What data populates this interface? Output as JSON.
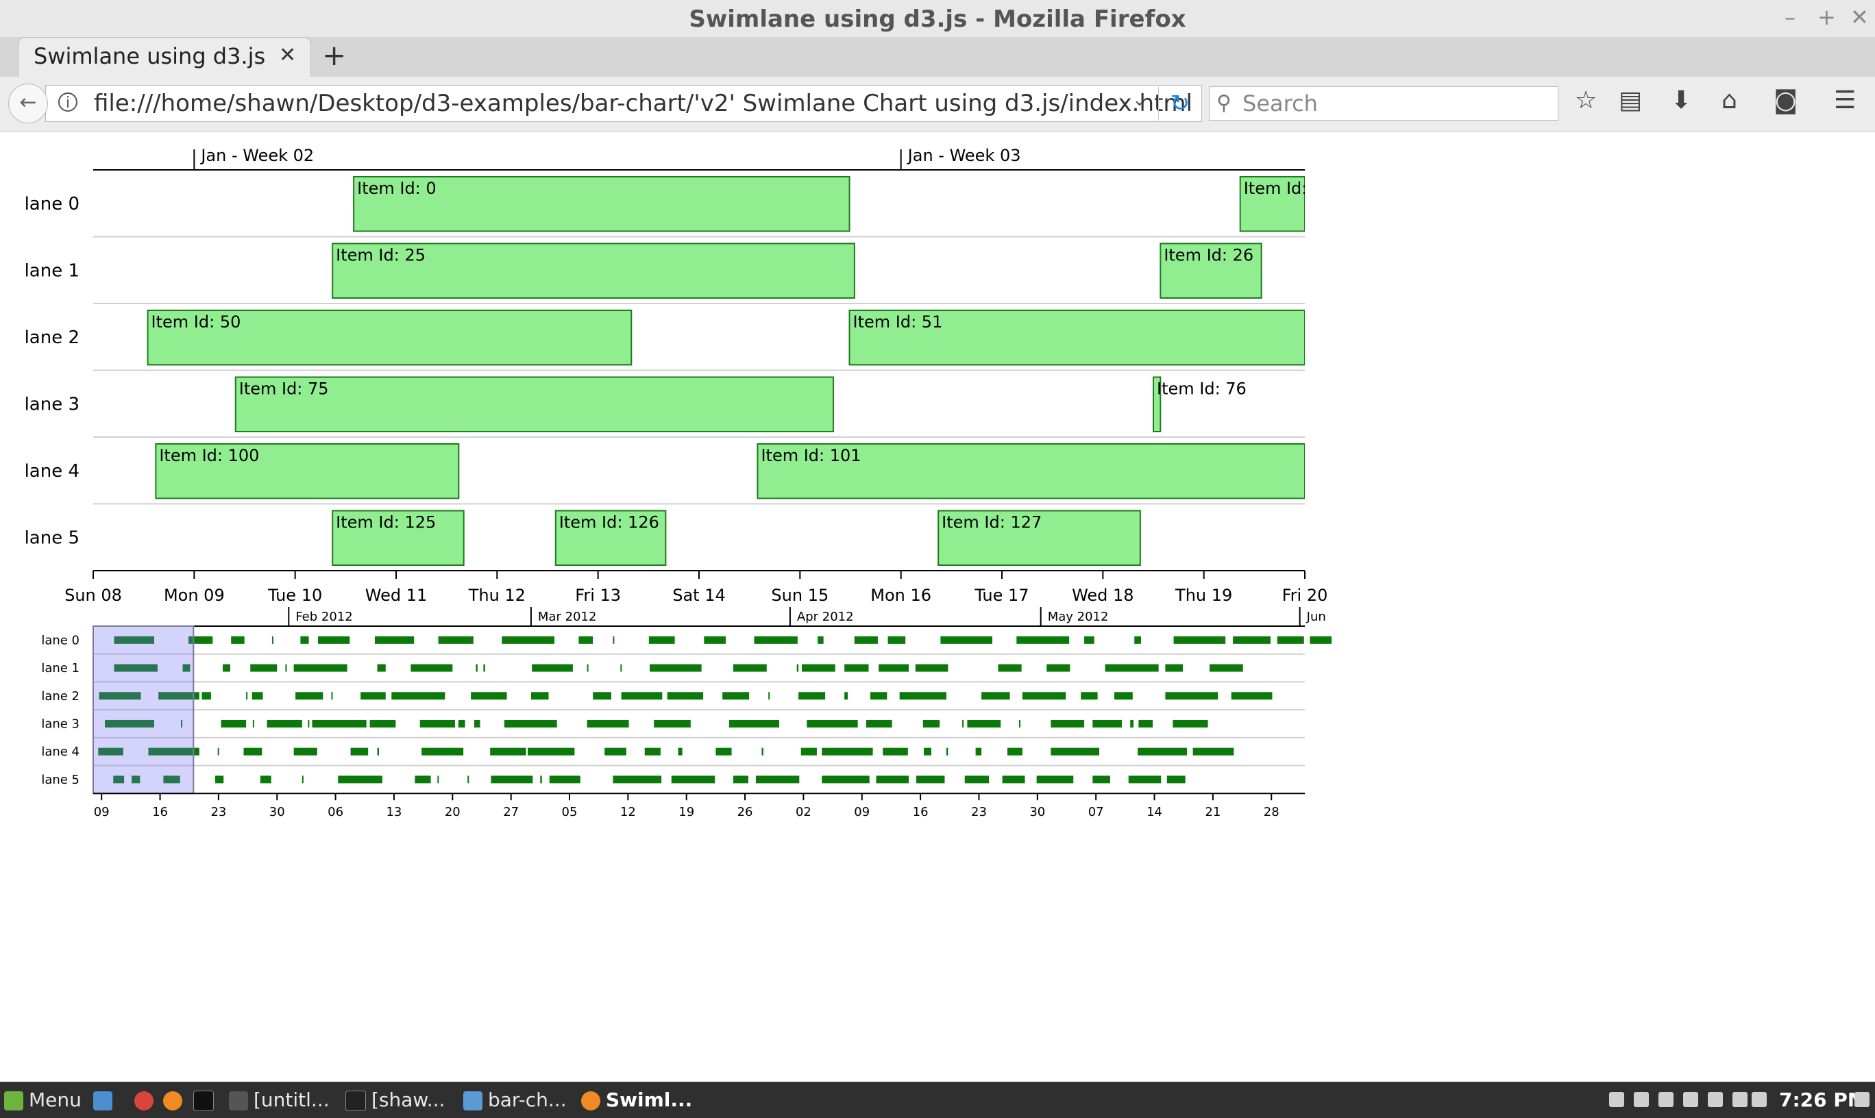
{
  "window": {
    "title": "Swimlane using d3.js - Mozilla Firefox",
    "controls": {
      "minimize": "–",
      "maximize": "+",
      "close": "✕"
    }
  },
  "tab": {
    "title": "Swimlane using d3.js",
    "close_glyph": "✕",
    "new_tab_glyph": "+"
  },
  "navbar": {
    "back_glyph": "←",
    "url": "file:///home/shawn/Desktop/d3-examples/bar-chart/'v2' Swimlane Chart using d3.js/index.html",
    "search_placeholder": "Search",
    "icons": [
      "star-icon",
      "reading-list-icon",
      "download-icon",
      "home-icon",
      "pocket-icon",
      "menu-icon"
    ]
  },
  "chart_data": {
    "type": "swimlane",
    "lanes": [
      "lane 0",
      "lane 1",
      "lane 2",
      "lane 3",
      "lane 4",
      "lane 5"
    ],
    "main": {
      "week_labels": [
        "Jan - Week 02",
        "Jan - Week 03"
      ],
      "day_ticks": [
        "Sun 08",
        "Mon 09",
        "Tue 10",
        "Wed 11",
        "Thu 12",
        "Fri 13",
        "Sat 14",
        "Sun 15",
        "Mon 16",
        "Tue 17",
        "Wed 18",
        "Thu 19",
        "Fri 20"
      ],
      "items": [
        {
          "lane": 0,
          "label": "Item Id: 0",
          "start": 2.58,
          "end": 7.49
        },
        {
          "lane": 0,
          "label": "Item Id:",
          "start": 11.36,
          "end": 12.0
        },
        {
          "lane": 1,
          "label": "Item Id: 25",
          "start": 2.37,
          "end": 7.54
        },
        {
          "lane": 1,
          "label": "Item Id: 26",
          "start": 10.57,
          "end": 11.57
        },
        {
          "lane": 2,
          "label": "Item Id: 50",
          "start": 0.54,
          "end": 5.33
        },
        {
          "lane": 2,
          "label": "Item Id: 51",
          "start": 7.49,
          "end": 12.0
        },
        {
          "lane": 3,
          "label": "Item Id: 75",
          "start": 1.41,
          "end": 7.33
        },
        {
          "lane": 3,
          "label": "Item Id: 76",
          "start": 10.5,
          "end": 10.57
        },
        {
          "lane": 4,
          "label": "Item Id: 100",
          "start": 0.62,
          "end": 3.62
        },
        {
          "lane": 4,
          "label": "Item Id: 101",
          "start": 6.58,
          "end": 12.0
        },
        {
          "lane": 5,
          "label": "Item Id: 125",
          "start": 2.37,
          "end": 3.67
        },
        {
          "lane": 5,
          "label": "Item Id: 126",
          "start": 4.58,
          "end": 5.67
        },
        {
          "lane": 5,
          "label": "Item Id: 127",
          "start": 8.37,
          "end": 10.37
        }
      ]
    },
    "mini": {
      "month_labels": [
        {
          "label": "Feb 2012",
          "day": 23.4
        },
        {
          "label": "Mar 2012",
          "day": 52.4
        },
        {
          "label": "Apr 2012",
          "day": 83.4
        },
        {
          "label": "May 2012",
          "day": 113.4
        },
        {
          "label": "Jun",
          "day": 144.4
        }
      ],
      "day_ticks": [
        {
          "label": "09",
          "day": 1
        },
        {
          "label": "16",
          "day": 8
        },
        {
          "label": "23",
          "day": 15
        },
        {
          "label": "30",
          "day": 22
        },
        {
          "label": "06",
          "day": 29
        },
        {
          "label": "13",
          "day": 36
        },
        {
          "label": "20",
          "day": 43
        },
        {
          "label": "27",
          "day": 50
        },
        {
          "label": "05",
          "day": 57
        },
        {
          "label": "12",
          "day": 64
        },
        {
          "label": "19",
          "day": 71
        },
        {
          "label": "26",
          "day": 78
        },
        {
          "label": "02",
          "day": 85
        },
        {
          "label": "09",
          "day": 92
        },
        {
          "label": "16",
          "day": 99
        },
        {
          "label": "23",
          "day": 106
        },
        {
          "label": "30",
          "day": 113
        },
        {
          "label": "07",
          "day": 120
        },
        {
          "label": "14",
          "day": 127
        },
        {
          "label": "21",
          "day": 134
        },
        {
          "label": "28",
          "day": 141
        }
      ],
      "brush": {
        "start": 0,
        "end": 12
      },
      "lane_items": [
        [
          [
            2.5,
            7.3
          ],
          [
            11.4,
            14.3
          ],
          [
            16.5,
            18.1
          ],
          [
            21.4,
            21.5
          ],
          [
            24.8,
            25.8
          ],
          [
            26.9,
            30.7
          ],
          [
            33.7,
            38.4
          ],
          [
            41.3,
            45.5
          ],
          [
            48.9,
            55.2
          ],
          [
            58.1,
            59.8
          ],
          [
            62.2,
            62.3
          ],
          [
            66.5,
            69.6
          ],
          [
            73.1,
            75.7
          ],
          [
            79.1,
            84.3
          ],
          [
            86.7,
            87.4
          ],
          [
            91.1,
            93.9
          ],
          [
            95.1,
            97.2
          ],
          [
            101.4,
            107.6
          ],
          [
            110.5,
            116.8
          ],
          [
            118.6,
            119.8
          ],
          [
            124.6,
            125.4
          ],
          [
            129.3,
            135.5
          ],
          [
            136.4,
            140.9
          ],
          [
            141.7,
            144.9
          ],
          [
            145.6,
            148.2
          ]
        ],
        [
          [
            2.5,
            7.7
          ],
          [
            10.7,
            11.6
          ],
          [
            15.5,
            16.4
          ],
          [
            18.8,
            22.0
          ],
          [
            23.0,
            23.1
          ],
          [
            24.0,
            30.4
          ],
          [
            34.0,
            35.0
          ],
          [
            38.0,
            43.0
          ],
          [
            45.8,
            46.0
          ],
          [
            46.7,
            46.9
          ],
          [
            52.5,
            57.4
          ],
          [
            59.1,
            59.2
          ],
          [
            63.1,
            63.2
          ],
          [
            66.6,
            72.8
          ],
          [
            76.6,
            80.6
          ],
          [
            84.2,
            84.4
          ],
          [
            84.8,
            88.8
          ],
          [
            89.9,
            92.8
          ],
          [
            94.0,
            97.6
          ],
          [
            98.4,
            102.3
          ],
          [
            108.3,
            111.1
          ],
          [
            114.1,
            116.9
          ],
          [
            121.1,
            127.5
          ],
          [
            128.3,
            130.4
          ],
          [
            133.6,
            137.6
          ]
        ],
        [
          [
            0.7,
            5.7
          ],
          [
            7.8,
            12.7
          ],
          [
            13.0,
            14.1
          ],
          [
            18.3,
            18.4
          ],
          [
            19.0,
            20.3
          ],
          [
            24.2,
            27.5
          ],
          [
            28.5,
            28.6
          ],
          [
            32.0,
            35.0
          ],
          [
            35.7,
            42.1
          ],
          [
            45.2,
            49.5
          ],
          [
            52.4,
            54.5
          ],
          [
            59.8,
            62.0
          ],
          [
            63.2,
            68.1
          ],
          [
            68.7,
            73.0
          ],
          [
            75.3,
            78.5
          ],
          [
            80.8,
            80.9
          ],
          [
            84.4,
            87.6
          ],
          [
            89.9,
            90.3
          ],
          [
            93.0,
            95.0
          ],
          [
            96.5,
            102.1
          ],
          [
            106.3,
            109.7
          ],
          [
            111.2,
            116.4
          ],
          [
            118.2,
            120.2
          ],
          [
            122.2,
            124.4
          ],
          [
            128.3,
            134.6
          ],
          [
            136.2,
            141.1
          ]
        ],
        [
          [
            1.4,
            7.3
          ],
          [
            10.5,
            10.6
          ],
          [
            15.3,
            18.3
          ],
          [
            19.1,
            19.2
          ],
          [
            20.8,
            25.0
          ],
          [
            25.7,
            25.8
          ],
          [
            26.2,
            32.7
          ],
          [
            33.1,
            36.2
          ],
          [
            39.1,
            43.3
          ],
          [
            43.7,
            44.5
          ],
          [
            45.6,
            46.3
          ],
          [
            49.2,
            55.5
          ],
          [
            59.1,
            64.1
          ],
          [
            67.1,
            71.5
          ],
          [
            76.1,
            82.1
          ],
          [
            85.4,
            91.5
          ],
          [
            92.5,
            95.6
          ],
          [
            99.3,
            101.3
          ],
          [
            104.0,
            104.1
          ],
          [
            104.6,
            108.6
          ],
          [
            110.8,
            110.9
          ],
          [
            114.6,
            118.6
          ],
          [
            119.6,
            123.1
          ],
          [
            124.1,
            124.5
          ],
          [
            125.1,
            126.8
          ],
          [
            129.2,
            133.4
          ]
        ],
        [
          [
            0.6,
            3.6
          ],
          [
            6.6,
            12.7
          ],
          [
            14.9,
            15.0
          ],
          [
            18.0,
            20.2
          ],
          [
            24.0,
            26.8
          ],
          [
            30.8,
            32.9
          ],
          [
            34.0,
            34.2
          ],
          [
            39.3,
            44.3
          ],
          [
            47.5,
            51.8
          ],
          [
            52.0,
            57.6
          ],
          [
            61.2,
            63.8
          ],
          [
            66.0,
            67.9
          ],
          [
            70.0,
            70.5
          ],
          [
            74.5,
            76.4
          ],
          [
            80.0,
            80.2
          ],
          [
            84.7,
            86.6
          ],
          [
            87.2,
            93.3
          ],
          [
            94.5,
            97.5
          ],
          [
            99.4,
            100.3
          ],
          [
            102.1,
            102.3
          ],
          [
            105.6,
            106.3
          ],
          [
            109.4,
            111.2
          ],
          [
            114.6,
            120.4
          ],
          [
            125.0,
            130.9
          ],
          [
            131.6,
            136.5
          ]
        ],
        [
          [
            2.4,
            3.7
          ],
          [
            4.6,
            5.6
          ],
          [
            8.4,
            10.4
          ],
          [
            14.6,
            15.6
          ],
          [
            20.0,
            21.3
          ],
          [
            25.0,
            25.1
          ],
          [
            29.3,
            34.6
          ],
          [
            38.5,
            40.4
          ],
          [
            41.2,
            41.3
          ],
          [
            44.8,
            44.9
          ],
          [
            47.6,
            52.6
          ],
          [
            53.5,
            53.7
          ],
          [
            54.6,
            58.3
          ],
          [
            62.2,
            68.0
          ],
          [
            69.2,
            74.4
          ],
          [
            76.6,
            78.4
          ],
          [
            79.3,
            84.5
          ],
          [
            87.2,
            92.9
          ],
          [
            93.7,
            97.6
          ],
          [
            98.5,
            101.9
          ],
          [
            104.3,
            107.2
          ],
          [
            108.8,
            111.5
          ],
          [
            112.9,
            117.3
          ],
          [
            119.6,
            121.7
          ],
          [
            123.9,
            127.8
          ],
          [
            128.5,
            130.7
          ]
        ]
      ]
    }
  },
  "taskbar": {
    "menu_label": "Menu",
    "items": [
      "[untitl...",
      "[shaw...",
      "bar-ch...",
      "Swiml..."
    ],
    "clock": "7:26 PM"
  }
}
